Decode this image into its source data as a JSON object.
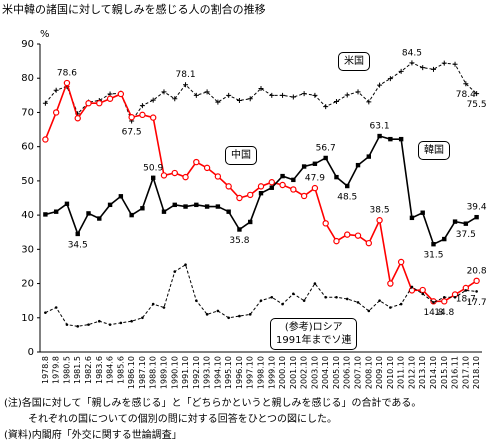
{
  "chart_data": {
    "type": "line",
    "title": "米中韓の諸国に対して親しみを感じる人の割合の推移",
    "y_axis_label": "%",
    "categories": [
      "1978.8",
      "1979.8",
      "1980.5",
      "1981.5",
      "1982.6",
      "1983.6",
      "1984.6",
      "1985.6",
      "1986.10",
      "1987.10",
      "1988.10",
      "1989.10",
      "1990.10",
      "1991.10",
      "1992.10",
      "1993.10",
      "1994.10",
      "1995.10",
      "1996.10",
      "1997.10",
      "1998.10",
      "1999.10",
      "2000.10",
      "2001.10",
      "2002.10",
      "2003.10",
      "2004.10",
      "2005.10",
      "2006.10",
      "2007.10",
      "2008.10",
      "2009.10",
      "2010.10",
      "2011.10",
      "2012.10",
      "2013.10",
      "2014.10",
      "2015.10",
      "2016.11",
      "2017.10",
      "2018.10"
    ],
    "series": [
      {
        "name": "米国",
        "color": "#000000",
        "dash": true,
        "marker": "plus",
        "values": [
          72.7,
          76.5,
          77.6,
          69.6,
          73.0,
          73.5,
          75.4,
          75.6,
          67.5,
          72.0,
          73.6,
          76.0,
          74.0,
          78.1,
          75.0,
          76.0,
          73.0,
          75.0,
          73.5,
          74.0,
          77.0,
          75.0,
          75.0,
          74.5,
          75.5,
          75.0,
          71.7,
          73.2,
          75.1,
          76.0,
          73.1,
          78.0,
          79.9,
          82.0,
          84.5,
          83.1,
          82.6,
          84.4,
          84.1,
          78.4,
          75.5
        ],
        "value_labels": [
          null,
          null,
          null,
          null,
          null,
          null,
          null,
          null,
          "67.5",
          null,
          null,
          null,
          null,
          "78.1",
          null,
          null,
          null,
          null,
          null,
          null,
          null,
          null,
          null,
          null,
          null,
          null,
          null,
          null,
          null,
          null,
          null,
          null,
          null,
          null,
          "84.5",
          null,
          null,
          null,
          null,
          "78.4",
          "75.5"
        ]
      },
      {
        "name": "中国",
        "color": "#ff0000",
        "dash": false,
        "marker": "circle",
        "values": [
          62.1,
          70.0,
          78.6,
          68.3,
          72.7,
          72.7,
          74.0,
          75.4,
          68.6,
          69.3,
          68.5,
          51.6,
          52.3,
          51.1,
          55.5,
          53.8,
          51.3,
          48.4,
          45.0,
          45.9,
          48.4,
          49.6,
          48.8,
          47.5,
          45.6,
          47.9,
          37.6,
          32.4,
          34.3,
          34.0,
          31.8,
          38.5,
          20.0,
          26.3,
          18.0,
          18.1,
          14.8,
          14.8,
          16.8,
          18.7,
          20.8
        ],
        "value_labels": [
          null,
          null,
          "78.6",
          null,
          null,
          null,
          null,
          null,
          null,
          null,
          null,
          null,
          null,
          null,
          null,
          null,
          null,
          null,
          null,
          null,
          null,
          null,
          null,
          null,
          null,
          "47.9",
          null,
          null,
          null,
          null,
          null,
          "38.5",
          null,
          null,
          null,
          null,
          "14.8",
          "14.8",
          null,
          "18.7",
          "20.8"
        ]
      },
      {
        "name": "韓国",
        "color": "#000000",
        "dash": false,
        "marker": "square",
        "values": [
          40.2,
          41.0,
          43.3,
          34.5,
          40.5,
          39.0,
          43.0,
          45.5,
          40.0,
          42.0,
          50.9,
          41.0,
          43.0,
          42.5,
          43.0,
          42.5,
          42.5,
          41.0,
          35.8,
          38.0,
          46.4,
          48.0,
          51.4,
          50.3,
          54.2,
          55.0,
          56.7,
          51.1,
          48.5,
          54.6,
          57.1,
          63.1,
          62.2,
          62.2,
          39.2,
          40.7,
          31.5,
          33.0,
          38.1,
          37.5,
          39.4
        ],
        "value_labels": [
          null,
          null,
          null,
          "34.5",
          null,
          null,
          null,
          null,
          null,
          null,
          "50.9",
          null,
          null,
          null,
          null,
          null,
          null,
          null,
          "35.8",
          null,
          null,
          null,
          null,
          null,
          null,
          null,
          "56.7",
          null,
          "48.5",
          null,
          null,
          "63.1",
          null,
          null,
          null,
          null,
          "31.5",
          null,
          null,
          "37.5",
          "39.4"
        ]
      },
      {
        "name": "(参考)ロシア\n1991年までソ連",
        "color": "#000000",
        "dash": true,
        "marker": "dot",
        "values": [
          11.5,
          13.0,
          8.0,
          7.5,
          8.0,
          9.0,
          8.0,
          8.5,
          9.0,
          10.0,
          14.0,
          13.0,
          23.5,
          25.5,
          15.0,
          11.0,
          12.0,
          10.0,
          10.5,
          11.0,
          15.0,
          16.0,
          14.0,
          17.0,
          15.0,
          20.0,
          16.0,
          16.0,
          15.5,
          14.5,
          12.0,
          15.0,
          13.0,
          14.0,
          19.0,
          17.0,
          14.5,
          16.0,
          16.0,
          18.0,
          17.7
        ],
        "value_labels": [
          null,
          null,
          null,
          null,
          null,
          null,
          null,
          null,
          null,
          null,
          null,
          null,
          null,
          null,
          null,
          null,
          null,
          null,
          null,
          null,
          null,
          null,
          null,
          null,
          null,
          null,
          null,
          null,
          null,
          null,
          null,
          null,
          null,
          null,
          null,
          null,
          null,
          null,
          null,
          null,
          "17.7"
        ]
      }
    ],
    "ylim": [
      0,
      90
    ],
    "yticks": [
      0,
      10,
      20,
      30,
      40,
      50,
      60,
      70,
      80,
      90
    ],
    "grid": false,
    "notes": [
      "(注)各国に対して「親しみを感じる」と「どちらかというと親しみを感じる」の合計である。",
      "それぞれの国についての個別の問に対する回答をひとつの図にした。",
      "(資料)内閣府「外交に関する世論調査」"
    ]
  }
}
